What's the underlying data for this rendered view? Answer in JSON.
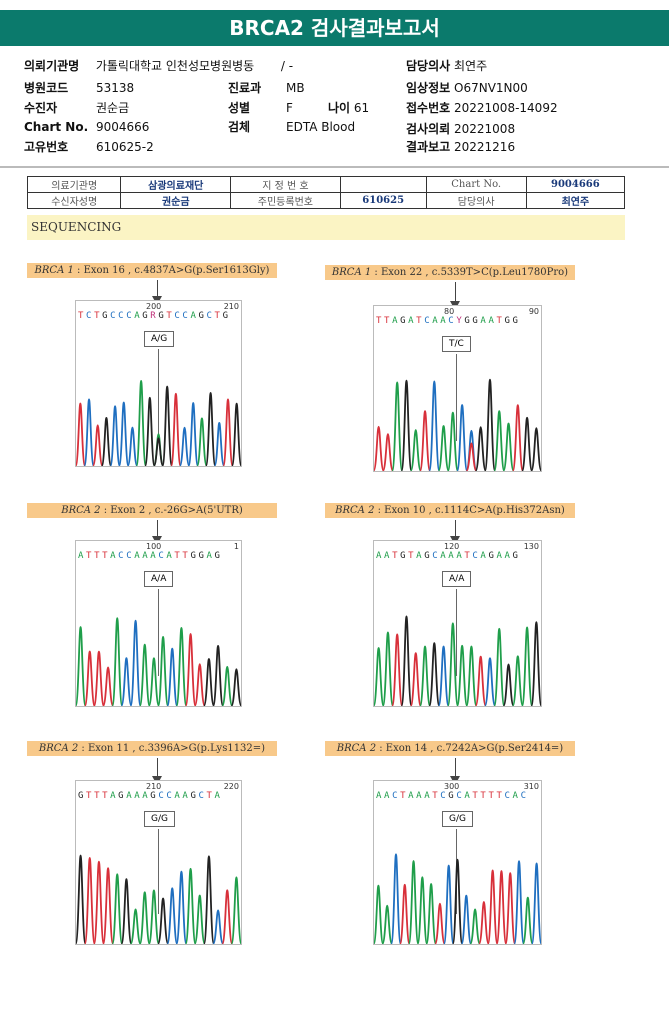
{
  "title": "BRCA2 검사결과보고서",
  "info": {
    "institution_label": "의뢰기관명",
    "institution": "가톨릭대학교 인천성모병원병동",
    "ward": "/ -",
    "doctor_label": "담당의사",
    "doctor": "최연주",
    "hospital_code_label": "병원코드",
    "hospital_code": "53138",
    "dept_label": "진료과",
    "dept": "MB",
    "clinical_label": "임상정보",
    "clinical": "O67NV1N00",
    "patient_label": "수진자",
    "patient": "권순금",
    "sex_label": "성별",
    "sex": "F",
    "age_label": "나이",
    "age": "61",
    "receipt_label": "접수번호",
    "receipt": "20221008-14092",
    "chart_label": "Chart No.",
    "chart": "9004666",
    "specimen_label": "검체",
    "specimen": "EDTA Blood",
    "request_label": "검사의뢰",
    "request": "20221008",
    "unique_label": "고유번호",
    "unique": "610625-2",
    "report_label": "결과보고",
    "report": "20221216"
  },
  "table": {
    "r1": [
      "의료기관명",
      "삼광의료재단",
      "지 정 번 호",
      "",
      "Chart No.",
      "9004666"
    ],
    "r2": [
      "수신자성명",
      "권순금",
      "주민등록번호",
      "610625",
      "담당의사",
      "최연주"
    ]
  },
  "section": "SEQUENCING",
  "panels": [
    {
      "gene": "BRCA 1",
      "desc": " : Exon 16 , c.4837A>G(p.Ser1613Gly)",
      "pos1": "200",
      "pos2": "210",
      "seq": "TCTGCCCAGRGTCCAGCTG",
      "genotype": "A/G"
    },
    {
      "gene": "BRCA 1",
      "desc": " : Exon 22 , c.5339T>C(p.Leu1780Pro)",
      "pos1": "80",
      "pos2": "90",
      "seq": "TTAGATCAACYGGAATGG",
      "genotype": "T/C"
    },
    {
      "gene": "BRCA 2",
      "desc": " : Exon 2 , c.-26G>A(5'UTR)",
      "pos1": "100",
      "pos2": "1",
      "seq": "ATTTACCAAACATTGGAG",
      "genotype": "A/A"
    },
    {
      "gene": "BRCA 2",
      "desc": " : Exon 10 , c.1114C>A(p.His372Asn)",
      "pos1": "120",
      "pos2": "130",
      "seq": "AATGTAGCAAATCAGAAG",
      "genotype": "A/A"
    },
    {
      "gene": "BRCA 2",
      "desc": " : Exon 11 , c.3396A>G(p.Lys1132=)",
      "pos1": "210",
      "pos2": "220",
      "seq": "GTTTAGAAAGCCAAGCTA",
      "genotype": "G/G"
    },
    {
      "gene": "BRCA 2",
      "desc": " : Exon 14 , c.7242A>G(p.Ser2414=)",
      "pos1": "300",
      "pos2": "310",
      "seq": "AACTAAATCGCATTTTCAC",
      "genotype": "G/G"
    }
  ],
  "colors": {
    "A": "#1f9e4a",
    "C": "#1f6fc0",
    "G": "#222222",
    "T": "#d8303a",
    "R": "#c0307a",
    "Y": "#c0307a"
  }
}
